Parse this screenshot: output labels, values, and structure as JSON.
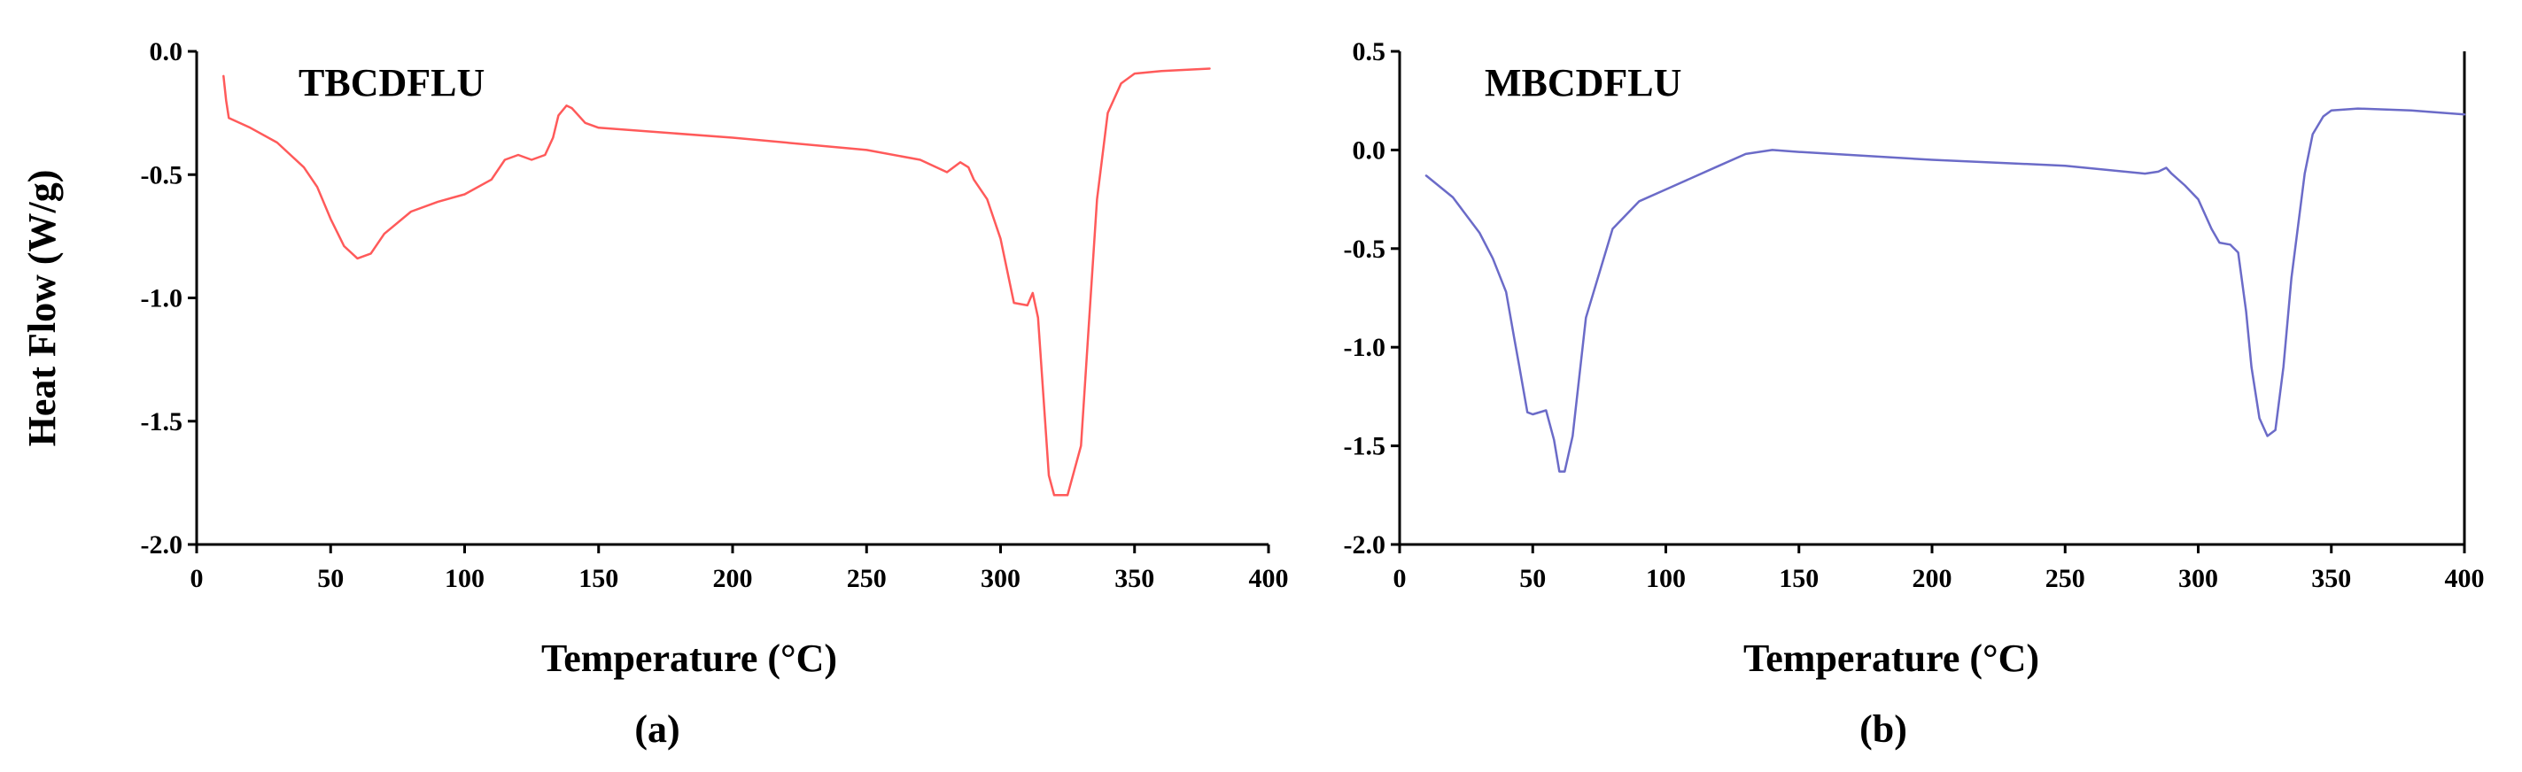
{
  "chart_data": [
    {
      "type": "line",
      "panel_label": "(a)",
      "title": "TBCDFLU",
      "xlabel": "Temperature (°C)",
      "ylabel": "Heat Flow (W/g)",
      "xlim": [
        0,
        400
      ],
      "ylim": [
        -2.0,
        0.0
      ],
      "x_ticks": [
        0,
        50,
        100,
        150,
        200,
        250,
        300,
        350,
        400
      ],
      "x_tick_labels": [
        "0",
        "50",
        "100",
        "150",
        "200",
        "250",
        "300",
        "350",
        "400"
      ],
      "y_ticks": [
        0.0,
        -0.5,
        -1.0,
        -1.5,
        -2.0
      ],
      "y_tick_labels": [
        "0.0",
        "-0.5",
        "-1.0",
        "-1.5",
        "-2.0"
      ],
      "series": [
        {
          "name": "TBCDFLU",
          "color": "#ff5a5a",
          "x": [
            10,
            11,
            12,
            20,
            30,
            40,
            45,
            50,
            55,
            60,
            65,
            70,
            80,
            90,
            100,
            110,
            115,
            120,
            125,
            130,
            133,
            135,
            138,
            140,
            145,
            150,
            200,
            250,
            270,
            280,
            285,
            288,
            290,
            295,
            300,
            305,
            310,
            312,
            314,
            316,
            318,
            320,
            322,
            325,
            330,
            333,
            336,
            340,
            345,
            350,
            360,
            378
          ],
          "y": [
            -0.1,
            -0.2,
            -0.27,
            -0.31,
            -0.37,
            -0.47,
            -0.55,
            -0.68,
            -0.79,
            -0.84,
            -0.82,
            -0.74,
            -0.65,
            -0.61,
            -0.58,
            -0.52,
            -0.44,
            -0.42,
            -0.44,
            -0.42,
            -0.35,
            -0.26,
            -0.22,
            -0.23,
            -0.29,
            -0.31,
            -0.35,
            -0.4,
            -0.44,
            -0.49,
            -0.45,
            -0.47,
            -0.52,
            -0.6,
            -0.76,
            -1.02,
            -1.03,
            -0.98,
            -1.08,
            -1.4,
            -1.72,
            -1.8,
            -1.8,
            -1.8,
            -1.6,
            -1.1,
            -0.6,
            -0.25,
            -0.13,
            -0.09,
            -0.08,
            -0.07
          ]
        }
      ]
    },
    {
      "type": "line",
      "panel_label": "(b)",
      "title": "MBCDFLU",
      "xlabel": "Temperature (°C)",
      "ylabel": "",
      "xlim": [
        0,
        400
      ],
      "ylim": [
        -2.0,
        0.5
      ],
      "x_ticks": [
        0,
        50,
        100,
        150,
        200,
        250,
        300,
        350,
        400
      ],
      "x_tick_labels": [
        "0",
        "50",
        "100",
        "150",
        "200",
        "250",
        "300",
        "350",
        "400"
      ],
      "y_ticks": [
        0.5,
        0.0,
        -0.5,
        -1.0,
        -1.5,
        -2.0
      ],
      "y_tick_labels": [
        "0.5",
        "0.0",
        "-0.5",
        "-1.0",
        "-1.5",
        "-2.0"
      ],
      "series": [
        {
          "name": "MBCDFLU",
          "color": "#6b6bc8",
          "x": [
            10,
            20,
            30,
            35,
            40,
            43,
            45,
            48,
            50,
            55,
            58,
            60,
            62,
            65,
            70,
            80,
            90,
            100,
            110,
            120,
            130,
            140,
            150,
            200,
            250,
            280,
            285,
            288,
            290,
            295,
            300,
            305,
            308,
            312,
            315,
            318,
            320,
            323,
            326,
            329,
            332,
            335,
            340,
            343,
            347,
            350,
            360,
            380,
            400
          ],
          "y": [
            -0.13,
            -0.24,
            -0.42,
            -0.55,
            -0.72,
            -0.95,
            -1.1,
            -1.33,
            -1.34,
            -1.32,
            -1.47,
            -1.63,
            -1.63,
            -1.45,
            -0.85,
            -0.4,
            -0.26,
            -0.2,
            -0.14,
            -0.08,
            -0.02,
            0.0,
            -0.01,
            -0.05,
            -0.08,
            -0.12,
            -0.11,
            -0.09,
            -0.12,
            -0.18,
            -0.25,
            -0.4,
            -0.47,
            -0.48,
            -0.52,
            -0.82,
            -1.1,
            -1.36,
            -1.45,
            -1.42,
            -1.1,
            -0.65,
            -0.12,
            0.08,
            0.17,
            0.2,
            0.21,
            0.2,
            0.18
          ]
        }
      ]
    }
  ]
}
